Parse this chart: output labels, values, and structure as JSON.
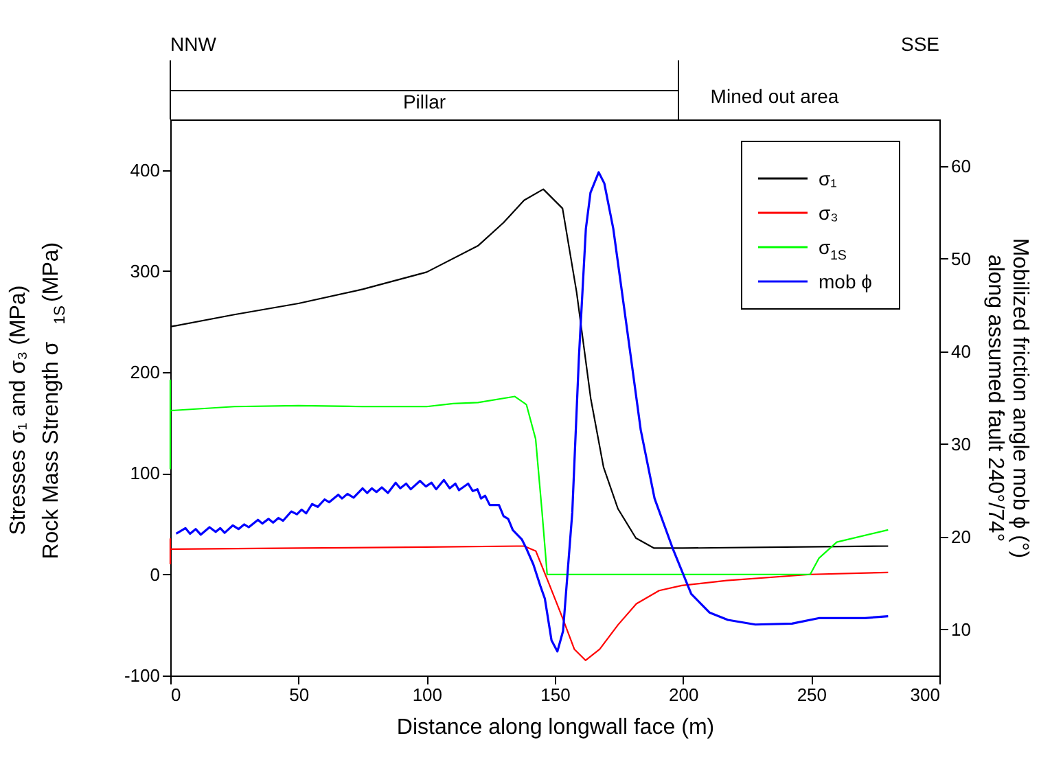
{
  "chart_data": {
    "type": "line",
    "xlabel": "Distance along longwall face (m)",
    "ylabel": "Stresses σ₁ and σ₃ (MPa)\nRock Mass Strength σ$_{1S}$ (MPa)",
    "y2label": "Mobilized friction angle mob ϕ (°)\nalong assumed fault 240°/74°",
    "xlim": [
      0,
      300
    ],
    "xticks": [
      0,
      50,
      100,
      150,
      200,
      250,
      300
    ],
    "ylim": [
      -100,
      450
    ],
    "yticks": [
      -100,
      0,
      100,
      200,
      300,
      400
    ],
    "y2lim": [
      5,
      65
    ],
    "y2ticks": [
      10,
      20,
      30,
      40,
      50,
      60
    ],
    "grid": false,
    "legend": "top right",
    "marker": "none",
    "line_style": "solid",
    "annotations": [
      "NNW",
      "SSE",
      "Pillar",
      "Mined out area"
    ],
    "series": [
      {
        "name": "σ₁",
        "color": "#000000",
        "x": [
          0,
          25,
          50,
          75,
          100,
          120,
          130,
          138,
          145.5,
          153,
          158.5,
          164,
          169,
          174.6,
          181.6,
          188.7,
          200,
          240,
          280
        ],
        "values": [
          245,
          257,
          268,
          282,
          299,
          325,
          348,
          370,
          381,
          362,
          279,
          174,
          106,
          65,
          36,
          26,
          26,
          27,
          28
        ]
      },
      {
        "name": "σ₃",
        "color": "#ff0000",
        "x": [
          0,
          0,
          0,
          50,
          100,
          135,
          138,
          142.6,
          148,
          153,
          157.6,
          162,
          167.5,
          174.6,
          181.8,
          190.7,
          199.5,
          217,
          249.6,
          280
        ],
        "values": [
          10,
          35,
          25,
          26,
          27,
          28,
          28,
          23,
          -11,
          -43,
          -74,
          -85,
          -74,
          -50,
          -29,
          -16,
          -11,
          -6,
          0,
          2
        ]
      },
      {
        "name": "σ$_{1S}$",
        "color": "#00ff00",
        "x": [
          0,
          0,
          0,
          25,
          50,
          75,
          100,
          110.3,
          120,
          134.4,
          138.9,
          142.5,
          145,
          147,
          249.6,
          253,
          260,
          280
        ],
        "values": [
          104,
          192,
          162,
          166,
          167,
          166,
          166,
          169,
          170,
          176,
          168,
          134,
          62,
          0,
          0,
          16,
          32,
          44
        ]
      },
      {
        "name": "mob ϕ",
        "color": "#0000ff",
        "axis": "y2",
        "x": [
          2.3,
          5.9,
          7.7,
          9.9,
          11.9,
          15.3,
          17.7,
          19.5,
          21.2,
          24.4,
          26.6,
          28.8,
          30.6,
          34.2,
          35.9,
          38.3,
          40.1,
          42.2,
          44.0,
          47.2,
          49.4,
          51.2,
          53,
          55.3,
          57.5,
          60.2,
          62,
          65.5,
          67,
          69.1,
          71.5,
          75,
          76.8,
          78.6,
          80.4,
          82.5,
          84.9,
          87.9,
          89.7,
          92,
          93.8,
          97.4,
          99.7,
          101.9,
          103.7,
          106.7,
          109,
          111.2,
          112.6,
          116.2,
          118,
          119.8,
          121.2,
          122.8,
          124.6,
          128.2,
          130,
          131.8,
          133.6,
          137.1,
          138.9,
          141.6,
          144.3,
          146.1,
          148.7,
          151.0,
          153.2,
          156.8,
          159.4,
          162.1,
          163.9,
          167.1,
          169.3,
          172.8,
          178.2,
          183.5,
          188.9,
          196,
          203.2,
          210.3,
          217.5,
          228.2,
          242.5,
          253.2,
          271,
          280
        ],
        "values": [
          20.3,
          20.9,
          20.3,
          20.8,
          20.2,
          21.0,
          20.5,
          20.9,
          20.4,
          21.2,
          20.8,
          21.3,
          21.0,
          21.8,
          21.4,
          21.9,
          21.5,
          22.0,
          21.7,
          22.7,
          22.4,
          22.9,
          22.5,
          23.5,
          23.2,
          24.0,
          23.7,
          24.5,
          24.1,
          24.6,
          24.2,
          25.2,
          24.7,
          25.2,
          24.8,
          25.3,
          24.7,
          25.8,
          25.2,
          25.7,
          25.1,
          26.0,
          25.4,
          25.8,
          25.1,
          26.1,
          25.2,
          25.7,
          25.0,
          25.7,
          24.9,
          25.1,
          24.1,
          24.4,
          23.4,
          23.4,
          22.2,
          21.9,
          20.7,
          19.7,
          18.7,
          17.0,
          14.7,
          13.3,
          8.8,
          7.6,
          9.8,
          22.6,
          39.4,
          53.2,
          57.1,
          59.3,
          58.1,
          53.2,
          42.3,
          31.5,
          24.1,
          18.7,
          13.8,
          11.8,
          11.0,
          10.5,
          10.6,
          11.2,
          11.2,
          11.4
        ]
      }
    ]
  }
}
